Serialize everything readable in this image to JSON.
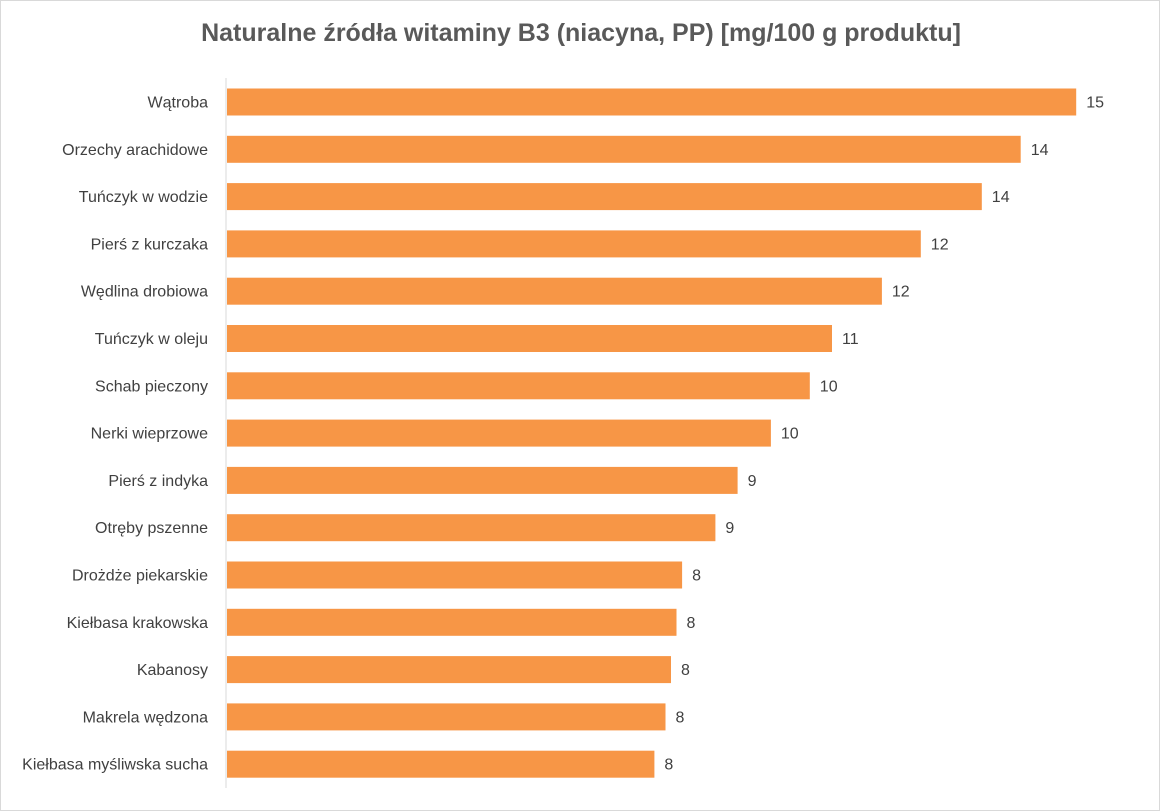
{
  "chart_data": {
    "type": "bar",
    "orientation": "horizontal",
    "title": "Naturalne źródła witaminy B3 (niacyna, PP) [mg/100 g produktu]",
    "xlabel": "",
    "ylabel": "",
    "xlim": [
      0,
      15.5
    ],
    "grid": false,
    "legend": "none",
    "bar_color": "#F79646",
    "categories": [
      "Wątroba",
      "Orzechy arachidowe",
      "Tuńczyk w wodzie",
      "Pierś z kurczaka",
      "Wędlina drobiowa",
      "Tuńczyk w oleju",
      "Schab pieczony",
      "Nerki wieprzowe",
      "Pierś z indyka",
      "Otręby pszenne",
      "Drożdże piekarskie",
      "Kiełbasa krakowska",
      "Kabanosy",
      "Makrela wędzona",
      "Kiełbasa myśliwska sucha"
    ],
    "values": [
      15.3,
      14.3,
      13.6,
      12.5,
      11.8,
      10.9,
      10.5,
      9.8,
      9.2,
      8.8,
      8.2,
      8.1,
      8.0,
      7.9,
      7.7
    ],
    "data_labels": [
      "15",
      "14",
      "14",
      "12",
      "12",
      "11",
      "10",
      "10",
      "9",
      "9",
      "8",
      "8",
      "8",
      "8",
      "8"
    ]
  }
}
